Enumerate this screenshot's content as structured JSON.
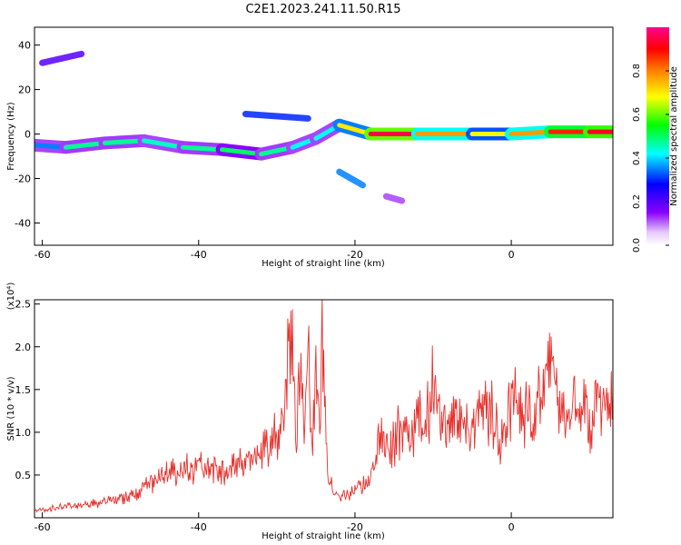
{
  "figure": {
    "title": "C2E1.2023.241.11.50.R15"
  },
  "colors": {
    "snr_line": "#e8302c",
    "axis": "#000000",
    "background": "#ffffff"
  },
  "chart_data": [
    {
      "type": "heatmap",
      "title": "C2E1.2023.241.11.50.R15",
      "xlabel": "Height of straight line (km)",
      "ylabel": "Frequency (Hz)",
      "xlim": [
        -61,
        13
      ],
      "ylim": [
        -50,
        48
      ],
      "x_ticks": [
        -60,
        -40,
        -20,
        0
      ],
      "y_ticks": [
        -40,
        -20,
        0,
        20,
        40
      ],
      "grid": false,
      "colorscale": "rainbow (white-violet-blue-cyan-green-yellow-red-pink)",
      "colorbar": {
        "label": "Normalized spectral amplitude",
        "range": [
          0,
          1
        ],
        "ticks": [
          0.0,
          0.2,
          0.4,
          0.6,
          0.8
        ]
      },
      "features": [
        {
          "kind": "ridge",
          "x": [
            -61,
            -57,
            -52,
            -47,
            -42,
            -37,
            -32,
            -28,
            -25,
            -22,
            -18,
            -12,
            -5,
            0,
            5,
            10,
            13
          ],
          "y": [
            -5,
            -6,
            -4,
            -3,
            -6,
            -7,
            -9,
            -6,
            -2,
            4,
            0,
            0,
            0,
            0,
            1,
            1,
            1
          ],
          "amplitude": [
            0.25,
            0.45,
            0.5,
            0.45,
            0.45,
            0.5,
            0.5,
            0.45,
            0.4,
            0.45,
            0.95,
            0.95,
            0.6,
            0.75,
            0.8,
            0.95,
            0.9
          ]
        },
        {
          "kind": "patch",
          "x": [
            -34,
            -26
          ],
          "y": [
            9,
            7
          ],
          "amplitude": 0.3
        },
        {
          "kind": "patch",
          "x": [
            -60,
            -55
          ],
          "y": [
            32,
            36
          ],
          "amplitude": 0.2
        },
        {
          "kind": "patch",
          "x": [
            -22,
            -19
          ],
          "y": [
            -17,
            -23
          ],
          "amplitude": 0.35
        },
        {
          "kind": "patch",
          "x": [
            -16,
            -14
          ],
          "y": [
            -28,
            -30
          ],
          "amplitude": 0.12
        }
      ]
    },
    {
      "type": "line",
      "xlabel": "Height of straight line (km)",
      "ylabel": "SNR (10 * v/v)",
      "y_multiplier": "(x10⁴)",
      "xlim": [
        -61,
        13
      ],
      "ylim": [
        0,
        2.55
      ],
      "x_ticks": [
        -60,
        -40,
        -20,
        0
      ],
      "y_ticks": [
        0.5,
        1.0,
        1.5,
        2.0,
        2.5
      ],
      "grid": false,
      "series": [
        {
          "color": "#e8302c",
          "x": [
            -61,
            -58,
            -55,
            -52,
            -50,
            -48,
            -46,
            -44,
            -42,
            -40,
            -38,
            -36,
            -34,
            -32,
            -30,
            -29,
            -28.2,
            -27.5,
            -27,
            -26.5,
            -26,
            -25.5,
            -25,
            -24.5,
            -24.2,
            -23.5,
            -22.5,
            -21,
            -20,
            -19,
            -18,
            -17.5,
            -17,
            -16.5,
            -16,
            -15,
            -14,
            -13,
            -12,
            -11,
            -10,
            -9.5,
            -9,
            -8,
            -7,
            -6,
            -5,
            -4,
            -3,
            -2,
            -1.5,
            -1,
            0,
            1,
            2,
            3,
            4,
            5,
            5.5,
            6,
            7,
            8,
            9,
            10,
            11,
            12,
            13
          ],
          "y": [
            0.08,
            0.12,
            0.15,
            0.18,
            0.22,
            0.3,
            0.4,
            0.5,
            0.55,
            0.6,
            0.6,
            0.55,
            0.65,
            0.75,
            0.95,
            1.3,
            2.55,
            0.9,
            1.85,
            0.8,
            1.9,
            0.95,
            1.7,
            1.2,
            2.2,
            0.5,
            0.25,
            0.28,
            0.32,
            0.4,
            0.45,
            0.6,
            1.05,
            0.95,
            0.85,
            0.9,
            1.05,
            0.95,
            1.2,
            1.1,
            1.55,
            1.4,
            1.05,
            1.15,
            1.3,
            1.0,
            1.05,
            1.2,
            1.3,
            1.1,
            0.8,
            1.05,
            1.4,
            1.35,
            1.2,
            1.3,
            1.45,
            1.65,
            1.55,
            1.3,
            1.25,
            1.4,
            1.3,
            1.1,
            1.45,
            1.35,
            1.45
          ]
        }
      ]
    }
  ]
}
